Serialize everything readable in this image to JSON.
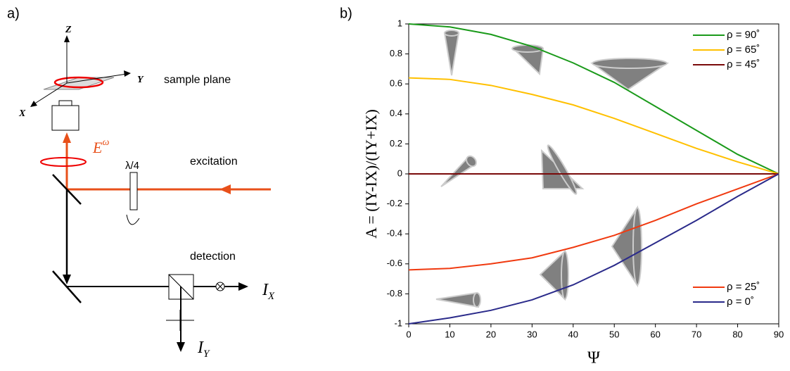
{
  "diagram": {
    "panel_label": "a)",
    "z_axis": "Z",
    "y_axis": "Y",
    "x_axis": "X",
    "sample_plane": "sample plane",
    "field": {
      "base": "E",
      "sup": "ω"
    },
    "excitation": "excitation",
    "waveplate": "λ/4",
    "detection": "detection",
    "ix": {
      "base": "I",
      "sub": "X"
    },
    "iy": {
      "base": "I",
      "sub": "Y"
    }
  },
  "chart_data": {
    "type": "line",
    "panel_label": "b)",
    "x_label": "Ψ",
    "y_label": "A = (IY-IX)/(IY+IX)",
    "x": [
      0,
      10,
      20,
      30,
      40,
      50,
      60,
      70,
      80,
      90
    ],
    "series": [
      {
        "name": "ρ = 90˚",
        "color": "#1a9a1a",
        "legend": "upper right",
        "values": [
          1,
          0.98,
          0.93,
          0.85,
          0.74,
          0.61,
          0.45,
          0.29,
          0.13,
          0
        ]
      },
      {
        "name": "ρ = 65˚",
        "color": "#ffc000",
        "legend": "upper right",
        "values": [
          0.64,
          0.63,
          0.59,
          0.53,
          0.46,
          0.37,
          0.27,
          0.17,
          0.08,
          0
        ]
      },
      {
        "name": "ρ = 45˚",
        "color": "#7a0a0a",
        "legend": "upper right",
        "values": [
          0,
          0,
          0,
          0,
          0,
          0,
          0,
          0,
          0,
          0
        ]
      },
      {
        "name": "ρ = 25˚",
        "color": "#f03a10",
        "legend": "lower right",
        "values": [
          -0.64,
          -0.63,
          -0.6,
          -0.56,
          -0.49,
          -0.41,
          -0.31,
          -0.2,
          -0.1,
          0
        ]
      },
      {
        "name": "ρ = 0˚",
        "color": "#2a2a8a",
        "legend": "lower right",
        "values": [
          -1,
          -0.96,
          -0.91,
          -0.84,
          -0.74,
          -0.61,
          -0.46,
          -0.31,
          -0.15,
          0
        ]
      }
    ],
    "xlim": [
      0,
      90
    ],
    "xticks": [
      0,
      10,
      20,
      30,
      40,
      50,
      60,
      70,
      80,
      90
    ],
    "ylim": [
      -1,
      1
    ],
    "yticks": [
      -1,
      -0.8,
      -0.6,
      -0.4,
      -0.2,
      0,
      0.2,
      0.4,
      0.6,
      0.8,
      1
    ]
  }
}
